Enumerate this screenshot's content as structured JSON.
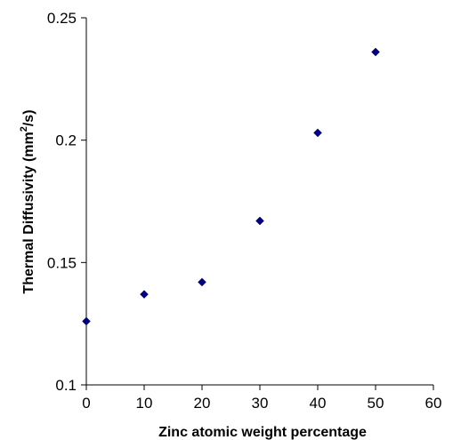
{
  "chart_data": {
    "type": "scatter",
    "xlabel": "Zinc atomic weight percentage",
    "ylabel_main": "Thermal Diffusivity (mm",
    "ylabel_sup": "2",
    "ylabel_end": "/s)",
    "xlim": [
      0,
      60
    ],
    "ylim": [
      0.1,
      0.25
    ],
    "xticks": [
      0,
      10,
      20,
      30,
      40,
      50,
      60
    ],
    "xtick_labels": [
      "0",
      "10",
      "20",
      "30",
      "40",
      "50",
      "60"
    ],
    "yticks": [
      0.1,
      0.15,
      0.2,
      0.25
    ],
    "ytick_labels": [
      "0.1",
      "0.15",
      "0.2",
      "0.25"
    ],
    "grid": false,
    "marker": "diamond",
    "marker_color": "#000080",
    "series": [
      {
        "x": [
          0,
          10,
          20,
          30,
          40,
          50
        ],
        "y": [
          0.126,
          0.137,
          0.142,
          0.167,
          0.203,
          0.236
        ]
      }
    ]
  }
}
